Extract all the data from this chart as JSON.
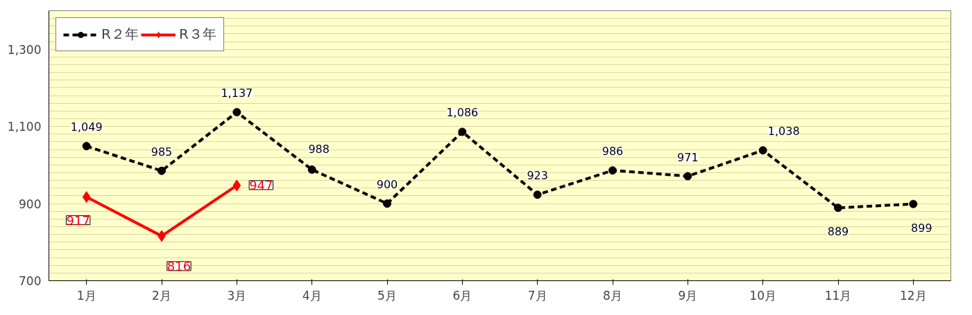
{
  "chart_data": {
    "type": "line",
    "categories": [
      "1月",
      "2月",
      "3月",
      "4月",
      "5月",
      "6月",
      "7月",
      "8月",
      "9月",
      "10月",
      "11月",
      "12月"
    ],
    "series": [
      {
        "name": "R２年",
        "color": "#000000",
        "line_style": "dashed",
        "marker": "circle",
        "values": [
          1049,
          985,
          1137,
          988,
          900,
          1086,
          923,
          986,
          971,
          1038,
          889,
          899
        ],
        "value_labels": [
          "1,049",
          "985",
          "1,137",
          "988",
          "900",
          "1,086",
          "923",
          "986",
          "971",
          "1,038",
          "889",
          "899"
        ]
      },
      {
        "name": "R３年",
        "color": "#ff0000",
        "line_style": "solid",
        "marker": "diamond",
        "values": [
          917,
          816,
          947,
          null,
          null,
          null,
          null,
          null,
          null,
          null,
          null,
          null
        ],
        "value_labels": [
          "917",
          "816",
          "947",
          null,
          null,
          null,
          null,
          null,
          null,
          null,
          null,
          null
        ]
      }
    ],
    "ylim": [
      700,
      1400
    ],
    "yticks": [
      700,
      {
        "value": 720,
        "label": null
      },
      {
        "value": 740,
        "label": null
      },
      {
        "value": 760,
        "label": null
      },
      {
        "value": 780,
        "label": null
      },
      {
        "value": 800,
        "label": null
      },
      {
        "value": 820,
        "label": null
      },
      {
        "value": 840,
        "label": null
      },
      {
        "value": 860,
        "label": null
      },
      {
        "value": 880,
        "label": null
      },
      900,
      {
        "value": 920,
        "label": null
      },
      {
        "value": 940,
        "label": null
      },
      {
        "value": 960,
        "label": null
      },
      {
        "value": 980,
        "label": null
      },
      {
        "value": 1000,
        "label": null
      },
      {
        "value": 1020,
        "label": null
      },
      {
        "value": 1040,
        "label": null
      },
      {
        "value": 1060,
        "label": null
      },
      {
        "value": 1080,
        "label": null
      },
      {
        "value": 1100,
        "label": "1,100"
      },
      {
        "value": 1120,
        "label": null
      },
      {
        "value": 1140,
        "label": null
      },
      {
        "value": 1160,
        "label": null
      },
      {
        "value": 1180,
        "label": null
      },
      {
        "value": 1200,
        "label": null
      },
      {
        "value": 1220,
        "label": null
      },
      {
        "value": 1240,
        "label": null
      },
      {
        "value": 1260,
        "label": null
      },
      {
        "value": 1280,
        "label": null
      },
      {
        "value": 1300,
        "label": "1,300"
      },
      {
        "value": 1320,
        "label": null
      },
      {
        "value": 1340,
        "label": null
      },
      {
        "value": 1360,
        "label": null
      },
      {
        "value": 1380,
        "label": null
      },
      {
        "value": 1400,
        "label": null
      }
    ],
    "grid": "y",
    "legend": "top left"
  }
}
